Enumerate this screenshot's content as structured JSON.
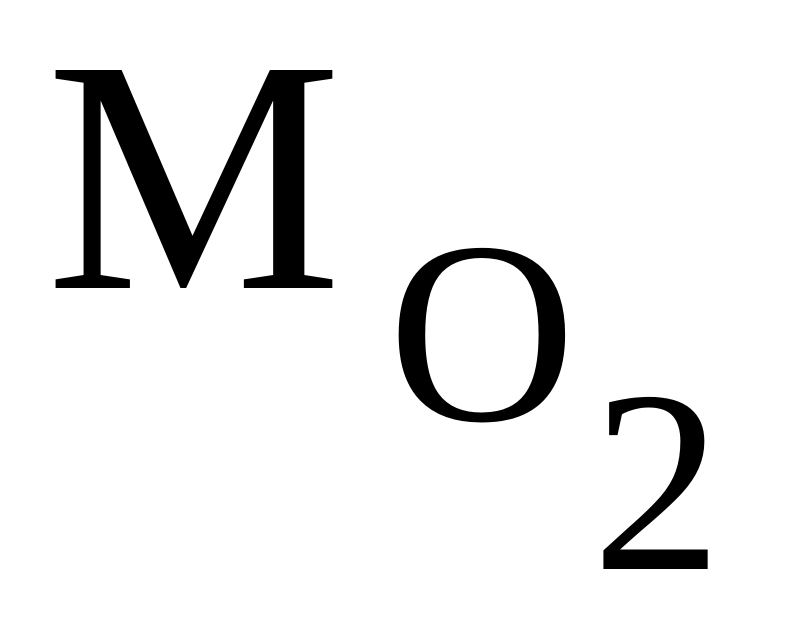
{
  "formula": {
    "main_symbol": "M",
    "subscript_letter": "O",
    "subscript_digit": "2"
  }
}
